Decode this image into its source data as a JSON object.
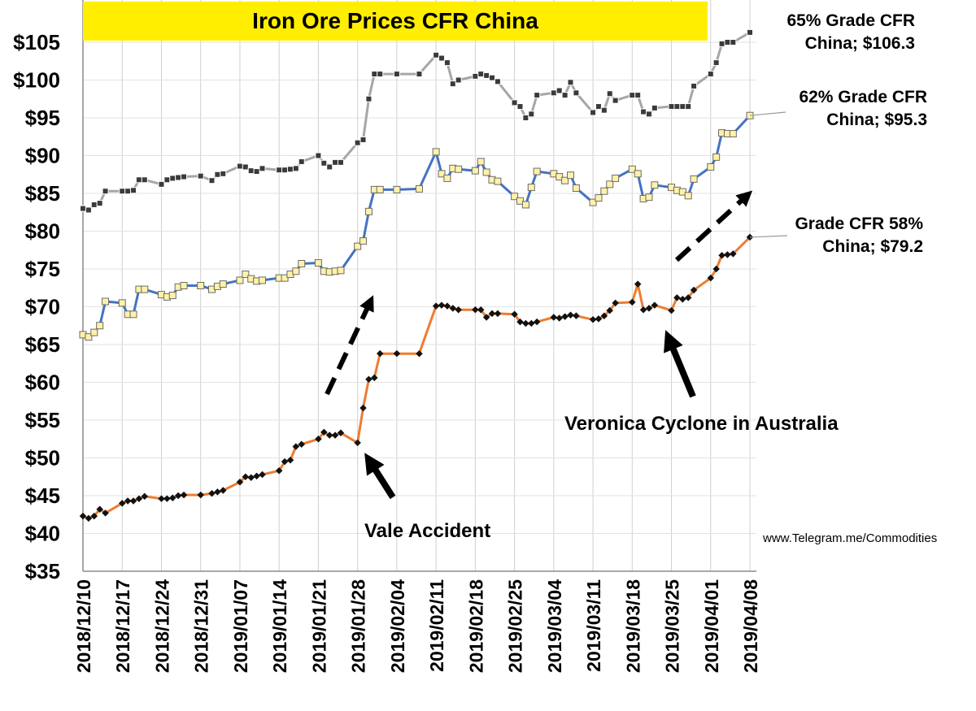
{
  "chart_data": {
    "type": "line",
    "title": "Iron Ore Prices CFR China",
    "ylim": [
      35,
      105
    ],
    "yticks": [
      "$35",
      "$40",
      "$45",
      "$50",
      "$55",
      "$60",
      "$65",
      "$70",
      "$75",
      "$80",
      "$85",
      "$90",
      "$95",
      "$100",
      "$105"
    ],
    "xticks": [
      "2018/12/10",
      "2018/12/17",
      "2018/12/24",
      "2018/12/31",
      "2019/01/07",
      "2019/01/14",
      "2019/01/21",
      "2019/01/28",
      "2019/02/04",
      "2019/02/11",
      "2019/02/18",
      "2019/02/25",
      "2019/03/04",
      "2019/03/11",
      "2019/03/18",
      "2019/03/25",
      "2019/04/01",
      "2019/04/08"
    ],
    "x_start": "2018/12/10",
    "x_end": "2019/04/08",
    "series": [
      {
        "name": "65% Grade CFR China",
        "color": "#a6a6a6",
        "label_lines": [
          "65% Grade CFR",
          "China; $106.3"
        ],
        "points": [
          [
            "2018/12/10",
            83
          ],
          [
            "2018/12/11",
            82.8
          ],
          [
            "2018/12/12",
            83.5
          ],
          [
            "2018/12/13",
            83.7
          ],
          [
            "2018/12/14",
            85.3
          ],
          [
            "2018/12/17",
            85.3
          ],
          [
            "2018/12/18",
            85.3
          ],
          [
            "2018/12/19",
            85.4
          ],
          [
            "2018/12/20",
            86.8
          ],
          [
            "2018/12/21",
            86.8
          ],
          [
            "2018/12/24",
            86.2
          ],
          [
            "2018/12/25",
            86.8
          ],
          [
            "2018/12/26",
            87
          ],
          [
            "2018/12/27",
            87.1
          ],
          [
            "2018/12/28",
            87.2
          ],
          [
            "2018/12/31",
            87.3
          ],
          [
            "2019/01/02",
            86.7
          ],
          [
            "2019/01/03",
            87.5
          ],
          [
            "2019/01/04",
            87.6
          ],
          [
            "2019/01/07",
            88.6
          ],
          [
            "2019/01/08",
            88.5
          ],
          [
            "2019/01/09",
            88
          ],
          [
            "2019/01/10",
            87.9
          ],
          [
            "2019/01/11",
            88.3
          ],
          [
            "2019/01/14",
            88.1
          ],
          [
            "2019/01/15",
            88.1
          ],
          [
            "2019/01/16",
            88.2
          ],
          [
            "2019/01/17",
            88.3
          ],
          [
            "2019/01/18",
            89.2
          ],
          [
            "2019/01/21",
            90
          ],
          [
            "2019/01/22",
            89
          ],
          [
            "2019/01/23",
            88.5
          ],
          [
            "2019/01/24",
            89.1
          ],
          [
            "2019/01/25",
            89.1
          ],
          [
            "2019/01/28",
            91.7
          ],
          [
            "2019/01/29",
            92.1
          ],
          [
            "2019/01/30",
            97.5
          ],
          [
            "2019/01/31",
            100.8
          ],
          [
            "2019/02/01",
            100.8
          ],
          [
            "2019/02/04",
            100.8
          ],
          [
            "2019/02/08",
            100.8
          ],
          [
            "2019/02/11",
            103.3
          ],
          [
            "2019/02/12",
            102.9
          ],
          [
            "2019/02/13",
            102.3
          ],
          [
            "2019/02/14",
            99.5
          ],
          [
            "2019/02/15",
            100
          ],
          [
            "2019/02/18",
            100.5
          ],
          [
            "2019/02/19",
            100.8
          ],
          [
            "2019/02/20",
            100.6
          ],
          [
            "2019/02/21",
            100.3
          ],
          [
            "2019/02/22",
            99.8
          ],
          [
            "2019/02/25",
            97
          ],
          [
            "2019/02/26",
            96.5
          ],
          [
            "2019/02/27",
            95
          ],
          [
            "2019/02/28",
            95.5
          ],
          [
            "2019/03/01",
            98
          ],
          [
            "2019/03/04",
            98.3
          ],
          [
            "2019/03/05",
            98.6
          ],
          [
            "2019/03/06",
            98
          ],
          [
            "2019/03/07",
            99.7
          ],
          [
            "2019/03/08",
            98.3
          ],
          [
            "2019/03/11",
            95.7
          ],
          [
            "2019/03/12",
            96.5
          ],
          [
            "2019/03/13",
            96
          ],
          [
            "2019/03/14",
            98.2
          ],
          [
            "2019/03/15",
            97.3
          ],
          [
            "2019/03/18",
            98
          ],
          [
            "2019/03/19",
            98
          ],
          [
            "2019/03/20",
            95.8
          ],
          [
            "2019/03/21",
            95.5
          ],
          [
            "2019/03/22",
            96.3
          ],
          [
            "2019/03/25",
            96.5
          ],
          [
            "2019/03/26",
            96.5
          ],
          [
            "2019/03/27",
            96.5
          ],
          [
            "2019/03/28",
            96.5
          ],
          [
            "2019/03/29",
            99.2
          ],
          [
            "2019/04/01",
            100.8
          ],
          [
            "2019/04/02",
            102.3
          ],
          [
            "2019/04/03",
            104.8
          ],
          [
            "2019/04/04",
            105
          ],
          [
            "2019/04/05",
            105
          ],
          [
            "2019/04/08",
            106.3
          ]
        ]
      },
      {
        "name": "62% Grade CFR China",
        "color": "#4472c4",
        "label_lines": [
          "62% Grade CFR",
          "China; $95.3"
        ],
        "points": [
          [
            "2018/12/10",
            66.3
          ],
          [
            "2018/12/11",
            66
          ],
          [
            "2018/12/12",
            66.6
          ],
          [
            "2018/12/13",
            67.5
          ],
          [
            "2018/12/14",
            70.7
          ],
          [
            "2018/12/17",
            70.5
          ],
          [
            "2018/12/18",
            69
          ],
          [
            "2018/12/19",
            69
          ],
          [
            "2018/12/20",
            72.3
          ],
          [
            "2018/12/21",
            72.3
          ],
          [
            "2018/12/24",
            71.6
          ],
          [
            "2018/12/25",
            71.3
          ],
          [
            "2018/12/26",
            71.5
          ],
          [
            "2018/12/27",
            72.6
          ],
          [
            "2018/12/28",
            72.8
          ],
          [
            "2018/12/31",
            72.8
          ],
          [
            "2019/01/02",
            72.3
          ],
          [
            "2019/01/03",
            72.7
          ],
          [
            "2019/01/04",
            73
          ],
          [
            "2019/01/07",
            73.5
          ],
          [
            "2019/01/08",
            74.3
          ],
          [
            "2019/01/09",
            73.7
          ],
          [
            "2019/01/10",
            73.4
          ],
          [
            "2019/01/11",
            73.5
          ],
          [
            "2019/01/14",
            73.8
          ],
          [
            "2019/01/15",
            73.8
          ],
          [
            "2019/01/16",
            74.3
          ],
          [
            "2019/01/17",
            74.7
          ],
          [
            "2019/01/18",
            75.7
          ],
          [
            "2019/01/21",
            75.8
          ],
          [
            "2019/01/22",
            74.7
          ],
          [
            "2019/01/23",
            74.6
          ],
          [
            "2019/01/24",
            74.7
          ],
          [
            "2019/01/25",
            74.8
          ],
          [
            "2019/01/28",
            78
          ],
          [
            "2019/01/29",
            78.7
          ],
          [
            "2019/01/30",
            82.6
          ],
          [
            "2019/01/31",
            85.5
          ],
          [
            "2019/02/01",
            85.5
          ],
          [
            "2019/02/04",
            85.5
          ],
          [
            "2019/02/08",
            85.6
          ],
          [
            "2019/02/11",
            90.5
          ],
          [
            "2019/02/12",
            87.6
          ],
          [
            "2019/02/13",
            87
          ],
          [
            "2019/02/14",
            88.3
          ],
          [
            "2019/02/15",
            88.2
          ],
          [
            "2019/02/18",
            88
          ],
          [
            "2019/02/19",
            89.2
          ],
          [
            "2019/02/20",
            87.8
          ],
          [
            "2019/02/21",
            86.8
          ],
          [
            "2019/02/22",
            86.6
          ],
          [
            "2019/02/25",
            84.6
          ],
          [
            "2019/02/26",
            84
          ],
          [
            "2019/02/27",
            83.5
          ],
          [
            "2019/02/28",
            85.8
          ],
          [
            "2019/03/01",
            87.9
          ],
          [
            "2019/03/04",
            87.6
          ],
          [
            "2019/03/05",
            87.2
          ],
          [
            "2019/03/06",
            86.7
          ],
          [
            "2019/03/07",
            87.4
          ],
          [
            "2019/03/08",
            85.7
          ],
          [
            "2019/03/11",
            83.8
          ],
          [
            "2019/03/12",
            84.4
          ],
          [
            "2019/03/13",
            85.3
          ],
          [
            "2019/03/14",
            86.2
          ],
          [
            "2019/03/15",
            87
          ],
          [
            "2019/03/18",
            88.2
          ],
          [
            "2019/03/19",
            87.6
          ],
          [
            "2019/03/20",
            84.3
          ],
          [
            "2019/03/21",
            84.5
          ],
          [
            "2019/03/22",
            86.1
          ],
          [
            "2019/03/25",
            85.8
          ],
          [
            "2019/03/26",
            85.4
          ],
          [
            "2019/03/27",
            85.2
          ],
          [
            "2019/03/28",
            84.7
          ],
          [
            "2019/03/29",
            86.9
          ],
          [
            "2019/04/01",
            88.5
          ],
          [
            "2019/04/02",
            89.8
          ],
          [
            "2019/04/03",
            93
          ],
          [
            "2019/04/04",
            92.9
          ],
          [
            "2019/04/05",
            92.9
          ],
          [
            "2019/04/08",
            95.3
          ]
        ]
      },
      {
        "name": "Grade CFR 58% China",
        "color": "#ed7d31",
        "label_lines": [
          "Grade CFR  58%",
          "China; $79.2"
        ],
        "points": [
          [
            "2018/12/10",
            42.3
          ],
          [
            "2018/12/11",
            42
          ],
          [
            "2018/12/12",
            42.3
          ],
          [
            "2018/12/13",
            43.2
          ],
          [
            "2018/12/14",
            42.7
          ],
          [
            "2018/12/17",
            44
          ],
          [
            "2018/12/18",
            44.3
          ],
          [
            "2018/12/19",
            44.3
          ],
          [
            "2018/12/20",
            44.6
          ],
          [
            "2018/12/21",
            44.9
          ],
          [
            "2018/12/24",
            44.6
          ],
          [
            "2018/12/25",
            44.6
          ],
          [
            "2018/12/26",
            44.7
          ],
          [
            "2018/12/27",
            45
          ],
          [
            "2018/12/28",
            45.1
          ],
          [
            "2018/12/31",
            45.1
          ],
          [
            "2019/01/02",
            45.3
          ],
          [
            "2019/01/03",
            45.5
          ],
          [
            "2019/01/04",
            45.7
          ],
          [
            "2019/01/07",
            46.8
          ],
          [
            "2019/01/08",
            47.5
          ],
          [
            "2019/01/09",
            47.4
          ],
          [
            "2019/01/10",
            47.6
          ],
          [
            "2019/01/11",
            47.8
          ],
          [
            "2019/01/14",
            48.3
          ],
          [
            "2019/01/15",
            49.5
          ],
          [
            "2019/01/16",
            49.7
          ],
          [
            "2019/01/17",
            51.5
          ],
          [
            "2019/01/18",
            51.8
          ],
          [
            "2019/01/21",
            52.5
          ],
          [
            "2019/01/22",
            53.4
          ],
          [
            "2019/01/23",
            53
          ],
          [
            "2019/01/24",
            53
          ],
          [
            "2019/01/25",
            53.3
          ],
          [
            "2019/01/28",
            52
          ],
          [
            "2019/01/29",
            56.6
          ],
          [
            "2019/01/30",
            60.4
          ],
          [
            "2019/01/31",
            60.6
          ],
          [
            "2019/02/01",
            63.8
          ],
          [
            "2019/02/04",
            63.8
          ],
          [
            "2019/02/08",
            63.8
          ],
          [
            "2019/02/11",
            70.1
          ],
          [
            "2019/02/12",
            70.2
          ],
          [
            "2019/02/13",
            70.1
          ],
          [
            "2019/02/14",
            69.8
          ],
          [
            "2019/02/15",
            69.6
          ],
          [
            "2019/02/18",
            69.6
          ],
          [
            "2019/02/19",
            69.6
          ],
          [
            "2019/02/20",
            68.6
          ],
          [
            "2019/02/21",
            69.1
          ],
          [
            "2019/02/22",
            69.1
          ],
          [
            "2019/02/25",
            69
          ],
          [
            "2019/02/26",
            68
          ],
          [
            "2019/02/27",
            67.8
          ],
          [
            "2019/02/28",
            67.8
          ],
          [
            "2019/03/01",
            68
          ],
          [
            "2019/03/04",
            68.6
          ],
          [
            "2019/03/05",
            68.5
          ],
          [
            "2019/03/06",
            68.7
          ],
          [
            "2019/03/07",
            68.9
          ],
          [
            "2019/03/08",
            68.8
          ],
          [
            "2019/03/11",
            68.3
          ],
          [
            "2019/03/12",
            68.4
          ],
          [
            "2019/03/13",
            68.8
          ],
          [
            "2019/03/14",
            69.5
          ],
          [
            "2019/03/15",
            70.5
          ],
          [
            "2019/03/18",
            70.6
          ],
          [
            "2019/03/19",
            73
          ],
          [
            "2019/03/20",
            69.6
          ],
          [
            "2019/03/21",
            69.8
          ],
          [
            "2019/03/22",
            70.2
          ],
          [
            "2019/03/25",
            69.5
          ],
          [
            "2019/03/26",
            71.2
          ],
          [
            "2019/03/27",
            71
          ],
          [
            "2019/03/28",
            71.2
          ],
          [
            "2019/03/29",
            72.2
          ],
          [
            "2019/04/01",
            73.8
          ],
          [
            "2019/04/02",
            75
          ],
          [
            "2019/04/03",
            76.8
          ],
          [
            "2019/04/04",
            76.9
          ],
          [
            "2019/04/05",
            77
          ],
          [
            "2019/04/08",
            79.2
          ]
        ]
      }
    ],
    "annotations": {
      "vale": "Vale Accident",
      "veronica": "Veronica Cyclone in Australia"
    }
  },
  "source": "www.Telegram.me/Commodities"
}
